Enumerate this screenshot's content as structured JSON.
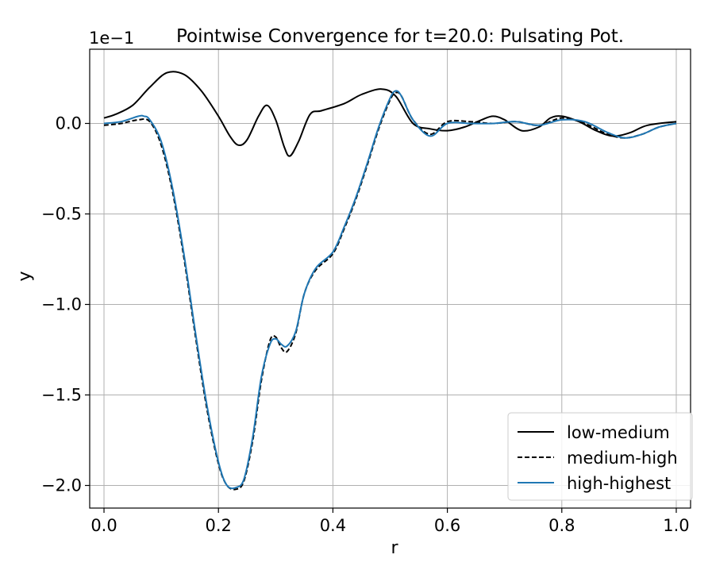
{
  "chart_data": {
    "type": "line",
    "title": "Pointwise Convergence for t=20.0: Pulsating Pot.",
    "offset_label": "1e−1",
    "xlabel": "r",
    "ylabel": "y",
    "xlim": [
      -0.025,
      1.025
    ],
    "ylim": [
      -2.125,
      0.41
    ],
    "y_scale_note": "values shown in units of 1e-1",
    "grid": true,
    "legend_position": "lower-right",
    "x_ticks": [
      0.0,
      0.2,
      0.4,
      0.6,
      0.8,
      1.0
    ],
    "x_tick_labels": [
      "0.0",
      "0.2",
      "0.4",
      "0.6",
      "0.8",
      "1.0"
    ],
    "y_ticks": [
      0.0,
      -0.5,
      -1.0,
      -1.5,
      -2.0
    ],
    "y_tick_labels": [
      "0.0",
      "−0.5",
      "−1.0",
      "−1.5",
      "−2.0"
    ],
    "series": [
      {
        "name": "low-medium",
        "color": "#000000",
        "style": "solid",
        "x": [
          0.0,
          0.02,
          0.05,
          0.08,
          0.11,
          0.14,
          0.17,
          0.2,
          0.22,
          0.235,
          0.25,
          0.27,
          0.285,
          0.3,
          0.315,
          0.325,
          0.34,
          0.36,
          0.38,
          0.42,
          0.45,
          0.485,
          0.51,
          0.54,
          0.57,
          0.6,
          0.63,
          0.66,
          0.68,
          0.7,
          0.73,
          0.76,
          0.78,
          0.8,
          0.83,
          0.86,
          0.89,
          0.92,
          0.95,
          1.0
        ],
        "y": [
          0.03,
          0.05,
          0.1,
          0.2,
          0.28,
          0.27,
          0.18,
          0.04,
          -0.07,
          -0.12,
          -0.09,
          0.04,
          0.1,
          0.02,
          -0.13,
          -0.18,
          -0.1,
          0.05,
          0.07,
          0.11,
          0.16,
          0.19,
          0.15,
          0.0,
          -0.03,
          -0.04,
          -0.02,
          0.02,
          0.04,
          0.02,
          -0.04,
          -0.02,
          0.03,
          0.04,
          0.01,
          -0.04,
          -0.07,
          -0.05,
          -0.01,
          0.01
        ]
      },
      {
        "name": "medium-high",
        "color": "#000000",
        "style": "dashed",
        "x": [
          0.0,
          0.03,
          0.06,
          0.08,
          0.1,
          0.12,
          0.14,
          0.16,
          0.18,
          0.2,
          0.215,
          0.232,
          0.245,
          0.26,
          0.275,
          0.29,
          0.3,
          0.31,
          0.32,
          0.335,
          0.35,
          0.37,
          0.4,
          0.42,
          0.44,
          0.46,
          0.48,
          0.5,
          0.51,
          0.52,
          0.54,
          0.57,
          0.6,
          0.64,
          0.68,
          0.72,
          0.76,
          0.8,
          0.84,
          0.88,
          0.91,
          0.94,
          0.97,
          1.0
        ],
        "y": [
          -0.01,
          0.0,
          0.02,
          0.01,
          -0.12,
          -0.38,
          -0.75,
          -1.18,
          -1.58,
          -1.88,
          -2.0,
          -2.02,
          -1.97,
          -1.75,
          -1.42,
          -1.2,
          -1.18,
          -1.24,
          -1.26,
          -1.16,
          -0.94,
          -0.81,
          -0.72,
          -0.58,
          -0.42,
          -0.23,
          -0.03,
          0.13,
          0.17,
          0.15,
          0.02,
          -0.06,
          0.01,
          0.01,
          0.0,
          0.01,
          -0.01,
          0.03,
          0.0,
          -0.06,
          -0.08,
          -0.06,
          -0.02,
          0.0
        ]
      },
      {
        "name": "high-highest",
        "color": "#1f77b4",
        "style": "solid",
        "x": [
          0.0,
          0.03,
          0.06,
          0.07,
          0.08,
          0.1,
          0.12,
          0.14,
          0.16,
          0.18,
          0.2,
          0.215,
          0.232,
          0.245,
          0.26,
          0.275,
          0.29,
          0.3,
          0.31,
          0.32,
          0.335,
          0.35,
          0.37,
          0.4,
          0.42,
          0.44,
          0.46,
          0.48,
          0.5,
          0.51,
          0.52,
          0.54,
          0.57,
          0.6,
          0.64,
          0.68,
          0.72,
          0.76,
          0.8,
          0.84,
          0.88,
          0.91,
          0.94,
          0.97,
          1.0
        ],
        "y": [
          0.0,
          0.01,
          0.04,
          0.04,
          0.02,
          -0.1,
          -0.36,
          -0.73,
          -1.16,
          -1.56,
          -1.87,
          -2.0,
          -2.01,
          -1.96,
          -1.73,
          -1.4,
          -1.22,
          -1.19,
          -1.22,
          -1.23,
          -1.15,
          -0.94,
          -0.8,
          -0.71,
          -0.57,
          -0.41,
          -0.22,
          -0.02,
          0.14,
          0.18,
          0.15,
          0.02,
          -0.07,
          0.0,
          0.0,
          0.0,
          0.01,
          -0.01,
          0.02,
          0.01,
          -0.05,
          -0.08,
          -0.06,
          -0.02,
          0.0
        ]
      }
    ]
  }
}
